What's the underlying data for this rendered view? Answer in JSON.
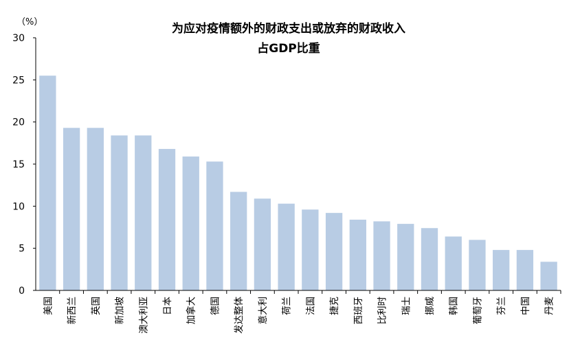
{
  "chart_data": {
    "type": "bar",
    "title": "为应对疫情额外的财政支出或放弃的财政收入",
    "subtitle": "占GDP比重",
    "ylabel": "（%）",
    "ylim": [
      0,
      30
    ],
    "yticks": [
      "0",
      "5",
      "10",
      "15",
      "20",
      "25",
      "30"
    ],
    "grid": false,
    "bar_color": "#b8cce4",
    "categories": [
      "美国",
      "新西兰",
      "英国",
      "新加坡",
      "澳大利亚",
      "日本",
      "加拿大",
      "德国",
      "发达整体",
      "意大利",
      "荷兰",
      "法国",
      "捷克",
      "西班牙",
      "比利时",
      "瑞士",
      "挪威",
      "韩国",
      "葡萄牙",
      "芬兰",
      "中国",
      "丹麦"
    ],
    "values": [
      25.5,
      19.3,
      19.3,
      18.4,
      18.4,
      16.8,
      15.9,
      15.3,
      11.7,
      10.9,
      10.3,
      9.6,
      9.2,
      8.4,
      8.2,
      7.9,
      7.4,
      6.4,
      6.0,
      4.8,
      4.8,
      3.4
    ]
  }
}
